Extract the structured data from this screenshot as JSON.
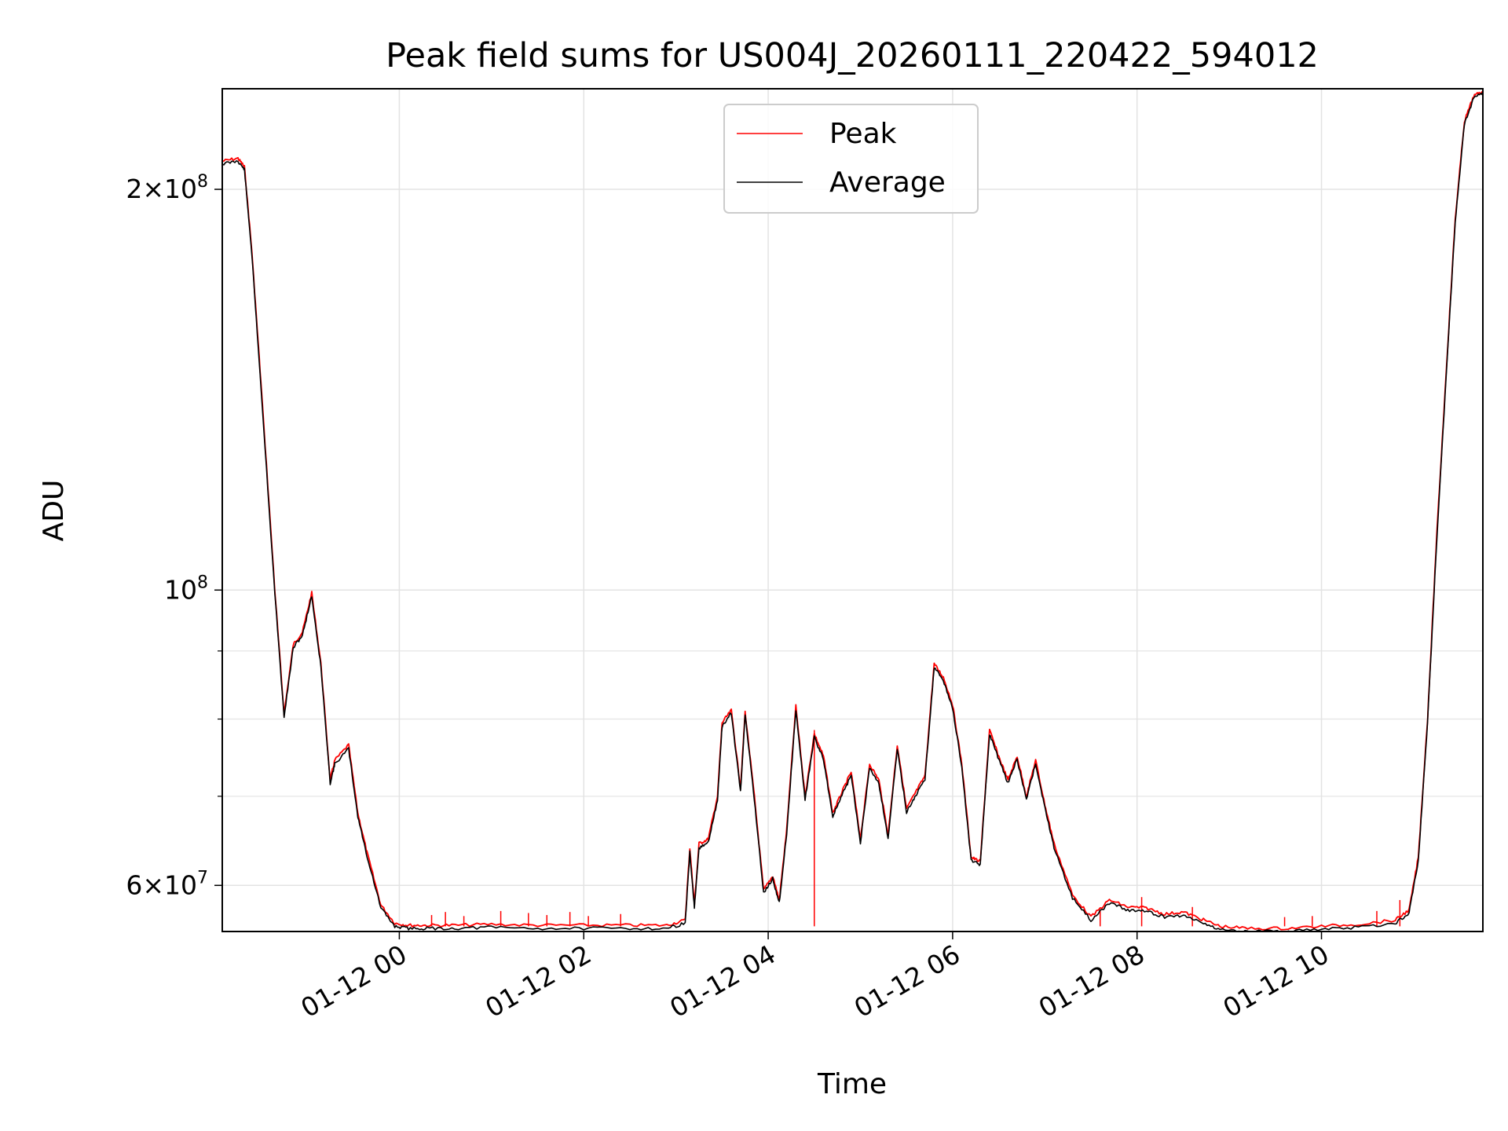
{
  "chart_data": {
    "type": "line",
    "title": "Peak field sums for US004J_20260111_220422_594012",
    "xlabel": "Time",
    "ylabel": "ADU",
    "x_unit": "hours since 2026-01-12 00:00",
    "xlim": [
      -1.92,
      11.75
    ],
    "ylim": [
      55400000,
      238000000
    ],
    "yscale": "log",
    "grid": true,
    "legend_position": "top-center",
    "x_ticks": [
      {
        "value": 0,
        "label": "01-12 00"
      },
      {
        "value": 2,
        "label": "01-12 02"
      },
      {
        "value": 4,
        "label": "01-12 04"
      },
      {
        "value": 6,
        "label": "01-12 06"
      },
      {
        "value": 8,
        "label": "01-12 08"
      },
      {
        "value": 10,
        "label": "01-12 10"
      }
    ],
    "y_ticks": [
      {
        "value": 60000000,
        "base": "6×10",
        "exp": "7"
      },
      {
        "value": 100000000,
        "base": "10",
        "exp": "8"
      },
      {
        "value": 200000000,
        "base": "2×10",
        "exp": "8"
      }
    ],
    "y_minor_ticks": [
      70000000,
      80000000,
      90000000
    ],
    "colors": {
      "peak": "#ff0000",
      "average": "#000000"
    },
    "series": [
      {
        "name": "Peak",
        "color": "#ff0000",
        "x": [
          -1.92,
          -1.75,
          -1.68,
          -1.6,
          -1.5,
          -1.35,
          -1.25,
          -1.15,
          -1.05,
          -0.95,
          -0.85,
          -0.75,
          -0.7,
          -0.55,
          -0.45,
          -0.35,
          -0.2,
          -0.05,
          0.1,
          0.3,
          0.6,
          1.0,
          1.5,
          2.0,
          2.5,
          2.9,
          3.1,
          3.15,
          3.2,
          3.25,
          3.35,
          3.45,
          3.5,
          3.6,
          3.7,
          3.75,
          3.85,
          3.95,
          4.05,
          4.12,
          4.2,
          4.3,
          4.4,
          4.5,
          4.6,
          4.7,
          4.8,
          4.9,
          5.0,
          5.1,
          5.2,
          5.3,
          5.4,
          5.5,
          5.6,
          5.7,
          5.8,
          5.9,
          6.0,
          6.1,
          6.2,
          6.3,
          6.4,
          6.5,
          6.6,
          6.7,
          6.8,
          6.9,
          7.0,
          7.1,
          7.3,
          7.5,
          7.7,
          7.9,
          8.1,
          8.3,
          8.5,
          8.7,
          8.9,
          9.2,
          9.6,
          10.0,
          10.4,
          10.8,
          10.95,
          11.05,
          11.15,
          11.25,
          11.35,
          11.45,
          11.55,
          11.65,
          11.75
        ],
        "values": [
          210000000,
          211000000,
          208000000,
          180000000,
          143000000,
          100000000,
          80700000,
          91000000,
          93000000,
          99500000,
          88000000,
          72000000,
          74500000,
          76500000,
          68000000,
          63500000,
          58000000,
          56200000,
          56000000,
          56000000,
          56000000,
          56100000,
          56000000,
          56000000,
          56000000,
          56000000,
          56500000,
          64000000,
          58000000,
          64500000,
          65000000,
          70000000,
          79500000,
          81200000,
          71000000,
          81000000,
          70000000,
          59500000,
          61000000,
          58500000,
          66000000,
          81800000,
          70000000,
          78000000,
          75000000,
          68000000,
          70500000,
          73000000,
          65000000,
          74000000,
          72000000,
          65500000,
          76500000,
          68500000,
          70500000,
          72500000,
          88000000,
          86000000,
          82000000,
          74000000,
          63000000,
          62500000,
          78500000,
          75000000,
          72000000,
          75000000,
          70000000,
          74500000,
          69000000,
          64500000,
          59000000,
          56800000,
          58500000,
          57800000,
          57700000,
          57100000,
          57300000,
          56600000,
          55900000,
          55700000,
          55700000,
          55900000,
          56100000,
          56500000,
          57500000,
          63000000,
          80000000,
          110000000,
          145000000,
          190000000,
          225000000,
          235000000,
          237000000
        ]
      },
      {
        "name": "Average",
        "color": "#000000",
        "x": [
          -1.92,
          -1.75,
          -1.68,
          -1.6,
          -1.5,
          -1.35,
          -1.25,
          -1.15,
          -1.05,
          -0.95,
          -0.85,
          -0.75,
          -0.7,
          -0.55,
          -0.45,
          -0.35,
          -0.2,
          -0.05,
          0.1,
          0.3,
          0.6,
          1.0,
          1.5,
          2.0,
          2.5,
          2.9,
          3.1,
          3.15,
          3.2,
          3.25,
          3.35,
          3.45,
          3.5,
          3.6,
          3.7,
          3.75,
          3.85,
          3.95,
          4.05,
          4.12,
          4.2,
          4.3,
          4.4,
          4.5,
          4.6,
          4.7,
          4.8,
          4.9,
          5.0,
          5.1,
          5.2,
          5.3,
          5.4,
          5.5,
          5.6,
          5.7,
          5.8,
          5.9,
          6.0,
          6.1,
          6.2,
          6.3,
          6.4,
          6.5,
          6.6,
          6.7,
          6.8,
          6.9,
          7.0,
          7.1,
          7.3,
          7.5,
          7.7,
          7.9,
          8.1,
          8.3,
          8.5,
          8.7,
          8.9,
          9.2,
          9.6,
          10.0,
          10.4,
          10.8,
          10.95,
          11.05,
          11.15,
          11.25,
          11.35,
          11.45,
          11.55,
          11.65,
          11.75
        ],
        "values": [
          209000000,
          210000000,
          207000000,
          179000000,
          142000000,
          99500000,
          80300000,
          90500000,
          92500000,
          99000000,
          87500000,
          71600000,
          74000000,
          76000000,
          67600000,
          63100000,
          57700000,
          55900000,
          55700000,
          55700000,
          55700000,
          55800000,
          55700000,
          55700000,
          55700000,
          55700000,
          56200000,
          63500000,
          57700000,
          64000000,
          64600000,
          69500000,
          79000000,
          80800000,
          70600000,
          80600000,
          69600000,
          59200000,
          60700000,
          58200000,
          65600000,
          81300000,
          69600000,
          77500000,
          74600000,
          67600000,
          70100000,
          72600000,
          64600000,
          73600000,
          71600000,
          65100000,
          76000000,
          68100000,
          70100000,
          72100000,
          87500000,
          85500000,
          81500000,
          73600000,
          62700000,
          62200000,
          78000000,
          74600000,
          71600000,
          74600000,
          69600000,
          74100000,
          68600000,
          64100000,
          58700000,
          56500000,
          58200000,
          57500000,
          57400000,
          56800000,
          57000000,
          56300000,
          55600000,
          55400000,
          55400000,
          55600000,
          55800000,
          56200000,
          57200000,
          62600000,
          79500000,
          109000000,
          144000000,
          189000000,
          224000000,
          234000000,
          236500000
        ]
      }
    ],
    "peak_spikes": [
      {
        "x": 0.35,
        "y": 57000000
      },
      {
        "x": 0.5,
        "y": 57300000
      },
      {
        "x": 0.7,
        "y": 56900000
      },
      {
        "x": 1.1,
        "y": 57400000
      },
      {
        "x": 1.4,
        "y": 57200000
      },
      {
        "x": 1.6,
        "y": 57000000
      },
      {
        "x": 1.85,
        "y": 57300000
      },
      {
        "x": 2.05,
        "y": 56900000
      },
      {
        "x": 2.4,
        "y": 57100000
      },
      {
        "x": 4.5,
        "y": 78500000
      },
      {
        "x": 7.6,
        "y": 57500000
      },
      {
        "x": 8.05,
        "y": 58800000
      },
      {
        "x": 8.6,
        "y": 57800000
      },
      {
        "x": 9.6,
        "y": 56800000
      },
      {
        "x": 9.9,
        "y": 56900000
      },
      {
        "x": 10.6,
        "y": 57400000
      },
      {
        "x": 10.85,
        "y": 58500000
      }
    ]
  }
}
